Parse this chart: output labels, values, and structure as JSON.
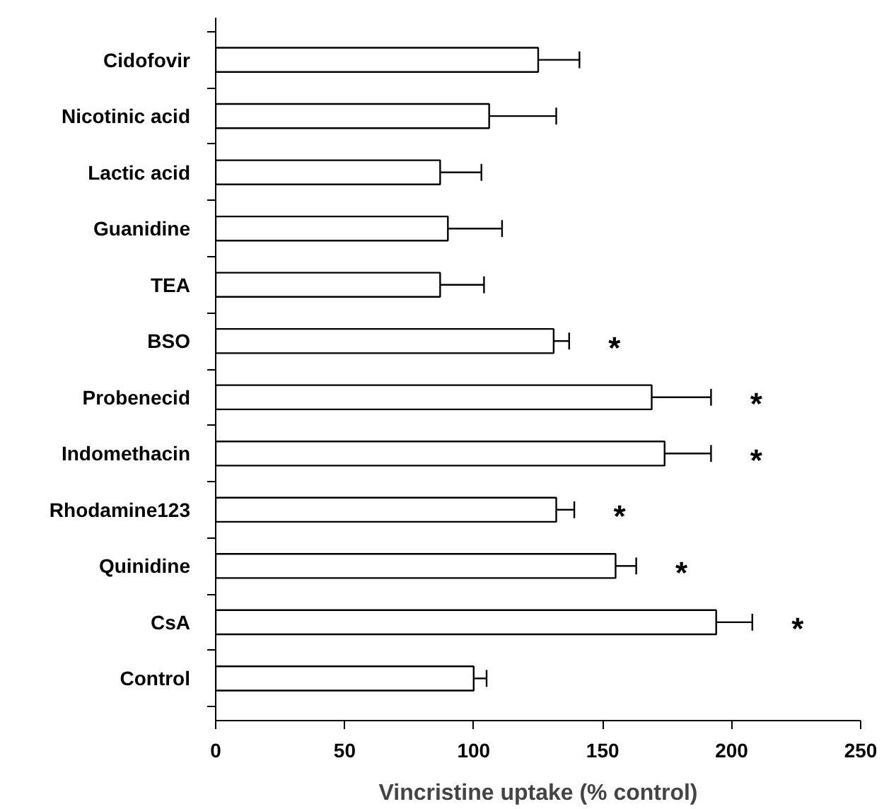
{
  "chart_data": {
    "type": "bar",
    "orientation": "horizontal",
    "xlabel": "Vincristine uptake (% control)",
    "categories": [
      "Cidofovir",
      "Nicotinic acid",
      "Lactic acid",
      "Guanidine",
      "TEA",
      "BSO",
      "Probenecid",
      "Indomethacin",
      "Rhodamine123",
      "Quinidine",
      "CsA",
      "Control"
    ],
    "values": [
      125,
      106,
      87,
      90,
      87,
      131,
      169,
      174,
      132,
      155,
      194,
      100
    ],
    "value_labels": [
      null,
      null,
      null,
      null,
      null,
      "*",
      "*",
      "*",
      "*",
      "*",
      "*",
      null
    ],
    "errors": [
      [
        125,
        141
      ],
      [
        106,
        132
      ],
      [
        87,
        103
      ],
      [
        90,
        111
      ],
      [
        87,
        104
      ],
      [
        131,
        137
      ],
      [
        169,
        192
      ],
      [
        174,
        192
      ],
      [
        132,
        139
      ],
      [
        155,
        163
      ],
      [
        194,
        208
      ],
      [
        100,
        105
      ]
    ],
    "color": "#ffffff",
    "xlim": [
      0,
      250
    ],
    "xticks": [
      0,
      50,
      100,
      150,
      200,
      250
    ]
  }
}
